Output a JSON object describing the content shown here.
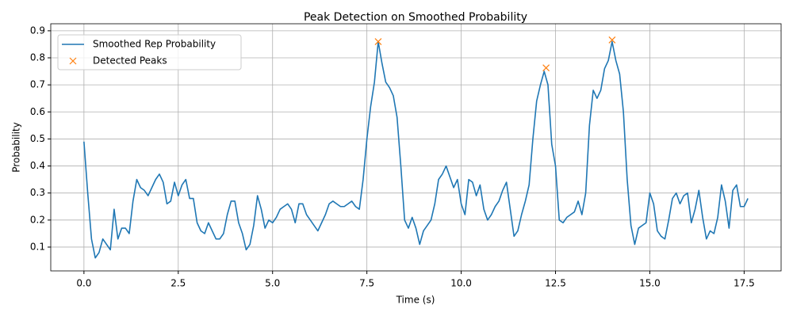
{
  "chart_data": {
    "type": "line",
    "title": "Peak Detection on Smoothed Probability",
    "x_label": "Time (s)",
    "y_label": "Probability",
    "xlim": [
      -0.88,
      18.48
    ],
    "ylim": [
      0.012,
      0.926
    ],
    "xticks": [
      {
        "value": 0,
        "label": "0.0"
      },
      2.5,
      {
        "value": 5,
        "label": "5.0"
      },
      7.5,
      {
        "value": 10,
        "label": "10.0"
      },
      12.5,
      {
        "value": 15,
        "label": "15.0"
      },
      17.5
    ],
    "yticks": [
      0.1,
      0.2,
      0.3,
      0.4,
      0.5,
      0.6,
      0.7,
      0.8,
      0.9
    ],
    "grid": true,
    "legend": "upper left",
    "series": [
      {
        "name": "Smoothed Rep Probability",
        "color": "#1f77b4",
        "marker": "none",
        "x": [
          0,
          0.1,
          0.2,
          0.3,
          0.4,
          0.5,
          0.6,
          0.7,
          0.8,
          0.9,
          1.0,
          1.1,
          1.2,
          1.3,
          1.4,
          1.5,
          1.6,
          1.7,
          1.8,
          1.9,
          2.0,
          2.1,
          2.2,
          2.3,
          2.4,
          2.5,
          2.6,
          2.7,
          2.8,
          2.9,
          3.0,
          3.1,
          3.2,
          3.3,
          3.4,
          3.5,
          3.6,
          3.7,
          3.8,
          3.9,
          4.0,
          4.1,
          4.2,
          4.3,
          4.4,
          4.5,
          4.6,
          4.7,
          4.8,
          4.9,
          5.0,
          5.1,
          5.2,
          5.3,
          5.4,
          5.5,
          5.6,
          5.7,
          5.8,
          5.9,
          6.0,
          6.1,
          6.2,
          6.3,
          6.4,
          6.5,
          6.6,
          6.7,
          6.8,
          6.9,
          7.0,
          7.1,
          7.2,
          7.3,
          7.4,
          7.5,
          7.6,
          7.7,
          7.8,
          7.9,
          8.0,
          8.1,
          8.2,
          8.3,
          8.4,
          8.5,
          8.6,
          8.7,
          8.8,
          8.9,
          9.0,
          9.1,
          9.2,
          9.3,
          9.4,
          9.5,
          9.6,
          9.7,
          9.8,
          9.9,
          10.0,
          10.1,
          10.2,
          10.3,
          10.4,
          10.5,
          10.6,
          10.7,
          10.8,
          10.9,
          11.0,
          11.1,
          11.2,
          11.3,
          11.4,
          11.5,
          11.6,
          11.7,
          11.8,
          11.9,
          12.0,
          12.1,
          12.2,
          12.3,
          12.4,
          12.5,
          12.6,
          12.7,
          12.8,
          12.9,
          13.0,
          13.1,
          13.2,
          13.3,
          13.4,
          13.5,
          13.6,
          13.7,
          13.8,
          13.9,
          14.0,
          14.1,
          14.2,
          14.3,
          14.4,
          14.5,
          14.6,
          14.7,
          14.8,
          14.9,
          15.0,
          15.1,
          15.2,
          15.3,
          15.4,
          15.5,
          15.6,
          15.7,
          15.8,
          15.9,
          16.0,
          16.1,
          16.2,
          16.3,
          16.4,
          16.5,
          16.6,
          16.7,
          16.8,
          16.9,
          17.0,
          17.1,
          17.2,
          17.3,
          17.4,
          17.5,
          17.6
        ],
        "values": [
          0.49,
          0.3,
          0.13,
          0.06,
          0.08,
          0.13,
          0.11,
          0.09,
          0.24,
          0.13,
          0.17,
          0.17,
          0.15,
          0.27,
          0.35,
          0.32,
          0.31,
          0.29,
          0.32,
          0.35,
          0.37,
          0.34,
          0.26,
          0.27,
          0.34,
          0.29,
          0.33,
          0.35,
          0.28,
          0.28,
          0.19,
          0.16,
          0.15,
          0.19,
          0.16,
          0.13,
          0.13,
          0.15,
          0.22,
          0.27,
          0.27,
          0.19,
          0.15,
          0.09,
          0.11,
          0.18,
          0.29,
          0.24,
          0.17,
          0.2,
          0.19,
          0.21,
          0.24,
          0.25,
          0.26,
          0.24,
          0.19,
          0.26,
          0.26,
          0.22,
          0.2,
          0.18,
          0.16,
          0.19,
          0.22,
          0.26,
          0.27,
          0.26,
          0.25,
          0.25,
          0.26,
          0.27,
          0.25,
          0.24,
          0.35,
          0.5,
          0.62,
          0.71,
          0.86,
          0.78,
          0.71,
          0.69,
          0.66,
          0.58,
          0.4,
          0.2,
          0.17,
          0.21,
          0.17,
          0.11,
          0.16,
          0.18,
          0.2,
          0.26,
          0.35,
          0.37,
          0.4,
          0.36,
          0.32,
          0.35,
          0.26,
          0.22,
          0.35,
          0.34,
          0.29,
          0.33,
          0.24,
          0.2,
          0.22,
          0.25,
          0.27,
          0.31,
          0.34,
          0.24,
          0.14,
          0.16,
          0.22,
          0.27,
          0.33,
          0.5,
          0.64,
          0.7,
          0.75,
          0.7,
          0.48,
          0.4,
          0.2,
          0.19,
          0.21,
          0.22,
          0.23,
          0.27,
          0.22,
          0.3,
          0.55,
          0.68,
          0.65,
          0.68,
          0.76,
          0.79,
          0.86,
          0.79,
          0.74,
          0.6,
          0.35,
          0.18,
          0.11,
          0.17,
          0.18,
          0.19,
          0.3,
          0.26,
          0.16,
          0.14,
          0.13,
          0.2,
          0.28,
          0.3,
          0.26,
          0.29,
          0.3,
          0.19,
          0.24,
          0.31,
          0.21,
          0.13,
          0.16,
          0.15,
          0.21,
          0.33,
          0.27,
          0.17,
          0.31,
          0.33,
          0.25,
          0.25,
          0.28
        ]
      },
      {
        "name": "Detected Peaks",
        "color": "#ff7f0e",
        "marker": "x",
        "x": [
          7.8,
          12.25,
          14.0
        ],
        "values": [
          0.86,
          0.763,
          0.866
        ]
      }
    ]
  }
}
